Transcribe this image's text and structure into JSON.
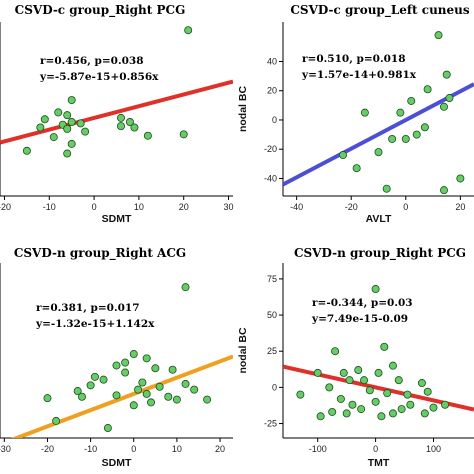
{
  "chart_data": [
    {
      "type": "scatter",
      "title": "CSVD-c group_Right PCG",
      "xlabel": "SDMT",
      "ylabel": "",
      "xticks": [
        -20,
        -10,
        0,
        10,
        20,
        30
      ],
      "yticks": [],
      "xlim": [
        -21,
        31
      ],
      "ylim": [
        -57,
        70
      ],
      "annotations": [
        "r=0.456, p=0.038",
        "y=-5.87e-15+0.856x"
      ],
      "fit": {
        "intercept": 0,
        "slope": 0.856,
        "color": "#e0302a"
      },
      "points": [
        {
          "x": 21,
          "y": 64
        },
        {
          "x": -5,
          "y": 13
        },
        {
          "x": -8,
          "y": 4
        },
        {
          "x": -6,
          "y": 2
        },
        {
          "x": -5,
          "y": -3
        },
        {
          "x": -7,
          "y": -5
        },
        {
          "x": -6,
          "y": -8
        },
        {
          "x": -3,
          "y": -4
        },
        {
          "x": -2,
          "y": -10
        },
        {
          "x": -12,
          "y": -7
        },
        {
          "x": -9,
          "y": -14
        },
        {
          "x": -5,
          "y": -19
        },
        {
          "x": -6,
          "y": -26
        },
        {
          "x": -15,
          "y": -24
        },
        {
          "x": 6,
          "y": 0
        },
        {
          "x": 8,
          "y": -3
        },
        {
          "x": 6,
          "y": -6
        },
        {
          "x": 9,
          "y": -7
        },
        {
          "x": 12,
          "y": -13
        },
        {
          "x": 20,
          "y": -12
        },
        {
          "x": -11,
          "y": -1
        }
      ]
    },
    {
      "type": "scatter",
      "title": "CSVD-c group_Left cuneus",
      "xlabel": "AVLT",
      "ylabel": "nodal BC",
      "xticks": [
        -40,
        -20,
        0,
        20
      ],
      "yticks": [
        -40,
        -20,
        0,
        20,
        40
      ],
      "xlim": [
        -45,
        25
      ],
      "ylim": [
        -52,
        67
      ],
      "annotations": [
        "r=0.510, p=0.018",
        "y=1.57e-14+0.981x"
      ],
      "fit": {
        "intercept": 0,
        "slope": 0.981,
        "color": "#4a4fd6"
      },
      "points": [
        {
          "x": 12,
          "y": 58
        },
        {
          "x": 16,
          "y": 15
        },
        {
          "x": 14,
          "y": 9
        },
        {
          "x": 15,
          "y": 31
        },
        {
          "x": 8,
          "y": 21
        },
        {
          "x": 2,
          "y": 13
        },
        {
          "x": -2,
          "y": 5
        },
        {
          "x": -15,
          "y": 5
        },
        {
          "x": 4,
          "y": -10
        },
        {
          "x": 7,
          "y": -5
        },
        {
          "x": 0,
          "y": -13
        },
        {
          "x": -5,
          "y": -13
        },
        {
          "x": -10,
          "y": -22
        },
        {
          "x": -23,
          "y": -24
        },
        {
          "x": -18,
          "y": -33
        },
        {
          "x": -7,
          "y": -47
        },
        {
          "x": 14,
          "y": -48
        },
        {
          "x": 20,
          "y": -40
        }
      ]
    },
    {
      "type": "scatter",
      "title": "CSVD-n group_Right ACG",
      "xlabel": "SDMT",
      "ylabel": "",
      "xticks": [
        -30,
        -20,
        -10,
        0,
        10,
        20
      ],
      "yticks": [],
      "xlim": [
        -31,
        23
      ],
      "ylim": [
        -31,
        92
      ],
      "annotations": [
        "r=0.381, p=0.017",
        "y=-1.32e-15+1.142x"
      ],
      "fit": {
        "intercept": 0,
        "slope": 1.142,
        "color": "#f0a020"
      },
      "points": [
        {
          "x": 12,
          "y": 75
        },
        {
          "x": 0,
          "y": 28
        },
        {
          "x": 3,
          "y": 25
        },
        {
          "x": -2,
          "y": 22
        },
        {
          "x": -4,
          "y": 20
        },
        {
          "x": 5,
          "y": 18
        },
        {
          "x": 9,
          "y": 17
        },
        {
          "x": -9,
          "y": 12
        },
        {
          "x": -7,
          "y": 10
        },
        {
          "x": 2,
          "y": 8
        },
        {
          "x": 6,
          "y": 5
        },
        {
          "x": -10,
          "y": 6
        },
        {
          "x": 1,
          "y": 3
        },
        {
          "x": -13,
          "y": 2
        },
        {
          "x": 12,
          "y": 7
        },
        {
          "x": 14,
          "y": 3
        },
        {
          "x": -20,
          "y": -3
        },
        {
          "x": -12,
          "y": -2
        },
        {
          "x": -4,
          "y": -1
        },
        {
          "x": 3,
          "y": 0
        },
        {
          "x": 8,
          "y": -2
        },
        {
          "x": 10,
          "y": -4
        },
        {
          "x": 17,
          "y": -4
        },
        {
          "x": 4,
          "y": -6
        },
        {
          "x": 0,
          "y": -8
        },
        {
          "x": -18,
          "y": -19
        },
        {
          "x": -6,
          "y": -24
        },
        {
          "x": -2,
          "y": 15
        }
      ]
    },
    {
      "type": "scatter",
      "title": "CSVD-n group_Right PCG",
      "xlabel": "TMT",
      "ylabel": "nodal BC",
      "xticks": [
        -100,
        0,
        100
      ],
      "yticks": [
        -25,
        0,
        25,
        50,
        75
      ],
      "xlim": [
        -160,
        170
      ],
      "ylim": [
        -35,
        86
      ],
      "annotations": [
        "r=-0.344, p=0.03",
        "y=7.49e-15-0.09"
      ],
      "fit": {
        "intercept": 0,
        "slope": -0.09,
        "color": "#e0302a"
      },
      "points": [
        {
          "x": 0,
          "y": 68
        },
        {
          "x": -70,
          "y": 25
        },
        {
          "x": 15,
          "y": 28
        },
        {
          "x": 30,
          "y": 15
        },
        {
          "x": -55,
          "y": 10
        },
        {
          "x": -30,
          "y": 12
        },
        {
          "x": 5,
          "y": 10
        },
        {
          "x": -100,
          "y": 10
        },
        {
          "x": -45,
          "y": 5
        },
        {
          "x": -20,
          "y": 5
        },
        {
          "x": 40,
          "y": 5
        },
        {
          "x": 80,
          "y": 3
        },
        {
          "x": 90,
          "y": -3
        },
        {
          "x": -130,
          "y": -5
        },
        {
          "x": -80,
          "y": 0
        },
        {
          "x": -10,
          "y": -2
        },
        {
          "x": 20,
          "y": -4
        },
        {
          "x": 55,
          "y": -5
        },
        {
          "x": -60,
          "y": -8
        },
        {
          "x": -40,
          "y": -12
        },
        {
          "x": 0,
          "y": -10
        },
        {
          "x": 60,
          "y": -12
        },
        {
          "x": -25,
          "y": -15
        },
        {
          "x": 100,
          "y": -14
        },
        {
          "x": -75,
          "y": -17
        },
        {
          "x": -50,
          "y": -18
        },
        {
          "x": 30,
          "y": -18
        },
        {
          "x": 45,
          "y": -15
        },
        {
          "x": 85,
          "y": -18
        },
        {
          "x": 120,
          "y": -12
        },
        {
          "x": -95,
          "y": -20
        },
        {
          "x": 10,
          "y": -20
        }
      ]
    }
  ],
  "style": {
    "point_fill": "#66cc66",
    "point_stroke": "#1e4d1e",
    "axis_color": "#000000"
  }
}
